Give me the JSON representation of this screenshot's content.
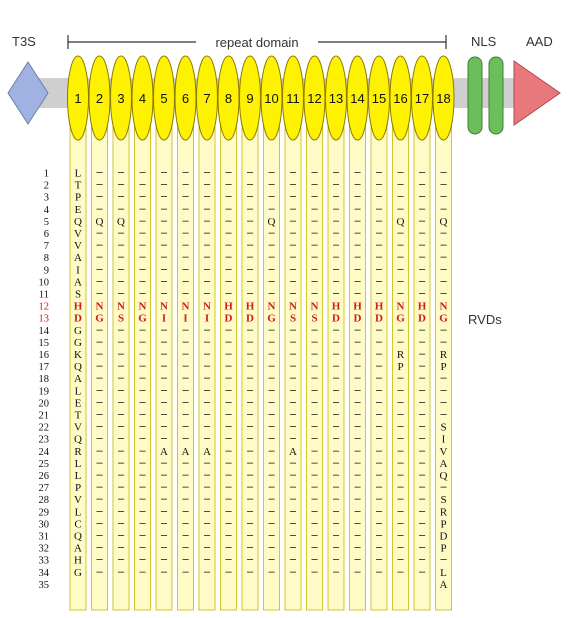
{
  "diagram": {
    "labels": {
      "t3s": "T3S",
      "repeat_domain": "repeat domain",
      "nls": "NLS",
      "aad": "AAD",
      "rvds": "RVDs"
    },
    "repeat_numbers": [
      "1",
      "2",
      "3",
      "4",
      "5",
      "6",
      "7",
      "8",
      "9",
      "10",
      "11",
      "12",
      "13",
      "14",
      "15",
      "16",
      "17",
      "18"
    ],
    "row_numbers": [
      "1",
      "2",
      "3",
      "4",
      "5",
      "6",
      "7",
      "8",
      "9",
      "10",
      "11",
      "12",
      "13",
      "14",
      "15",
      "16",
      "17",
      "18",
      "19",
      "20",
      "21",
      "22",
      "23",
      "24",
      "25",
      "26",
      "27",
      "28",
      "29",
      "30",
      "31",
      "32",
      "33",
      "34",
      "35"
    ],
    "rvd_rows": [
      12,
      13
    ],
    "consensus": [
      "L",
      "T",
      "P",
      "E",
      "Q",
      "V",
      "V",
      "A",
      "I",
      "A",
      "S",
      "H",
      "D",
      "G",
      "G",
      "K",
      "Q",
      "A",
      "L",
      "E",
      "T",
      "V",
      "Q",
      "R",
      "L",
      "L",
      "P",
      "V",
      "L",
      "C",
      "Q",
      "A",
      "H",
      "G",
      ""
    ],
    "rvds": {
      "row12": [
        "H",
        "N",
        "N",
        "N",
        "N",
        "N",
        "N",
        "H",
        "H",
        "N",
        "N",
        "N",
        "H",
        "H",
        "H",
        "N",
        "H",
        "N"
      ],
      "row13": [
        "D",
        "G",
        "S",
        "G",
        "I",
        "I",
        "I",
        "D",
        "D",
        "G",
        "S",
        "S",
        "D",
        "D",
        "D",
        "G",
        "D",
        "G"
      ]
    },
    "substitutions": [
      {
        "repeat": 2,
        "row": 5,
        "aa": "Q"
      },
      {
        "repeat": 3,
        "row": 5,
        "aa": "Q"
      },
      {
        "repeat": 10,
        "row": 5,
        "aa": "Q"
      },
      {
        "repeat": 16,
        "row": 5,
        "aa": "Q"
      },
      {
        "repeat": 18,
        "row": 5,
        "aa": "Q"
      },
      {
        "repeat": 16,
        "row": 16,
        "aa": "R"
      },
      {
        "repeat": 16,
        "row": 17,
        "aa": "P"
      },
      {
        "repeat": 18,
        "row": 16,
        "aa": "R"
      },
      {
        "repeat": 18,
        "row": 17,
        "aa": "P"
      },
      {
        "repeat": 5,
        "row": 24,
        "aa": "A"
      },
      {
        "repeat": 6,
        "row": 24,
        "aa": "A"
      },
      {
        "repeat": 7,
        "row": 24,
        "aa": "A"
      },
      {
        "repeat": 11,
        "row": 24,
        "aa": "A"
      },
      {
        "repeat": 18,
        "row": 22,
        "aa": "S"
      },
      {
        "repeat": 18,
        "row": 23,
        "aa": "I"
      },
      {
        "repeat": 18,
        "row": 24,
        "aa": "V"
      },
      {
        "repeat": 18,
        "row": 25,
        "aa": "A"
      },
      {
        "repeat": 18,
        "row": 26,
        "aa": "Q"
      },
      {
        "repeat": 18,
        "row": 28,
        "aa": "S"
      },
      {
        "repeat": 18,
        "row": 29,
        "aa": "R"
      },
      {
        "repeat": 18,
        "row": 30,
        "aa": "P"
      },
      {
        "repeat": 18,
        "row": 31,
        "aa": "D"
      },
      {
        "repeat": 18,
        "row": 32,
        "aa": "P"
      },
      {
        "repeat": 18,
        "row": 34,
        "aa": "L"
      },
      {
        "repeat": 18,
        "row": 35,
        "aa": "A"
      }
    ],
    "repeat_rows": {
      "full": 34,
      "last": 20
    },
    "colors": {
      "t3s": "#9fb2e2",
      "repeat": "#fff200",
      "repeat_stroke": "#8a7a00",
      "column_fill": "#fffbc6",
      "column_stroke": "#c8b800",
      "nls": "#6cbe5a",
      "aad": "#e9787c",
      "backbone": "#cfcfcf",
      "rvd": "#d11a1a"
    }
  }
}
